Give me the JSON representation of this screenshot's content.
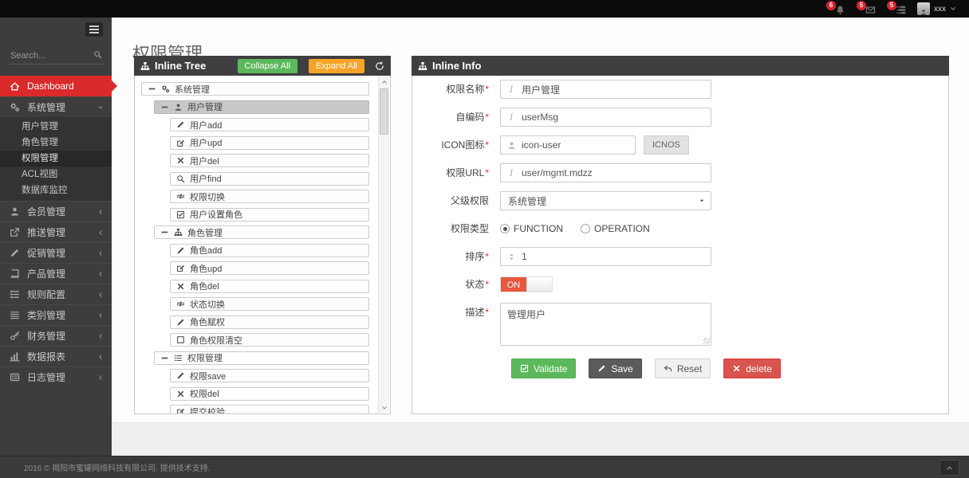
{
  "topbar": {
    "notifications": [
      {
        "icon": "bell",
        "count": "6"
      },
      {
        "icon": "envelope",
        "count": "5"
      },
      {
        "icon": "tasks",
        "count": "5"
      }
    ],
    "user": {
      "name": "xxx"
    }
  },
  "sidebar": {
    "search_placeholder": "Search...",
    "dashboard": {
      "label": "Dashboard"
    },
    "system_menu": {
      "label": "系统管理",
      "items": [
        {
          "name": "users",
          "label": "用户管理",
          "active": false
        },
        {
          "name": "roles",
          "label": "角色管理",
          "active": false
        },
        {
          "name": "permissions",
          "label": "权限管理",
          "active": true
        },
        {
          "name": "acl-view",
          "label": "ACL视图",
          "active": false
        },
        {
          "name": "db-monitor",
          "label": "数据库监控",
          "active": false
        }
      ]
    },
    "items": [
      {
        "name": "members",
        "label": "会员管理",
        "icon": "user"
      },
      {
        "name": "push",
        "label": "推送管理",
        "icon": "share"
      },
      {
        "name": "promotion",
        "label": "促销管理",
        "icon": "pencil"
      },
      {
        "name": "product",
        "label": "产品管理",
        "icon": "book"
      },
      {
        "name": "rules",
        "label": "规则配置",
        "icon": "thlist"
      },
      {
        "name": "category",
        "label": "类别管理",
        "icon": "justify"
      },
      {
        "name": "finance",
        "label": "财务管理",
        "icon": "key"
      },
      {
        "name": "reports",
        "label": "数据报表",
        "icon": "chart"
      },
      {
        "name": "logs",
        "label": "日志管理",
        "icon": "listalt"
      }
    ]
  },
  "page": {
    "title": "权限管理"
  },
  "tree_panel": {
    "title": "Inline Tree",
    "collapse_all": "Collapse All",
    "expand_all": "Expand All",
    "rows": [
      {
        "label": "系统管理",
        "level": 0,
        "type": "parent",
        "icon": "cogs",
        "selected": false
      },
      {
        "label": "用户管理",
        "level": 1,
        "type": "parent",
        "icon": "user",
        "selected": true
      },
      {
        "label": "用户add",
        "level": 2,
        "type": "leaf",
        "icon": "pencil",
        "selected": false
      },
      {
        "label": "用户upd",
        "level": 2,
        "type": "leaf",
        "icon": "edit",
        "selected": false
      },
      {
        "label": "用户del",
        "level": 2,
        "type": "leaf",
        "icon": "x",
        "selected": false
      },
      {
        "label": "用户find",
        "level": 2,
        "type": "leaf",
        "icon": "search",
        "selected": false
      },
      {
        "label": "权限切换",
        "level": 2,
        "type": "leaf",
        "icon": "retweet",
        "selected": false
      },
      {
        "label": "用户设置角色",
        "level": 2,
        "type": "leaf",
        "icon": "checksq",
        "selected": false
      },
      {
        "label": "角色管理",
        "level": 1,
        "type": "parent",
        "icon": "sitemap",
        "selected": false
      },
      {
        "label": "角色add",
        "level": 2,
        "type": "leaf",
        "icon": "pencil",
        "selected": false
      },
      {
        "label": "角色upd",
        "level": 2,
        "type": "leaf",
        "icon": "edit",
        "selected": false
      },
      {
        "label": "角色del",
        "level": 2,
        "type": "leaf",
        "icon": "x",
        "selected": false
      },
      {
        "label": "状态切换",
        "level": 2,
        "type": "leaf",
        "icon": "retweet",
        "selected": false
      },
      {
        "label": "角色赋权",
        "level": 2,
        "type": "leaf",
        "icon": "pencil",
        "selected": false
      },
      {
        "label": "角色权限清空",
        "level": 2,
        "type": "leaf",
        "icon": "square",
        "selected": false
      },
      {
        "label": "权限管理",
        "level": 1,
        "type": "parent",
        "icon": "list",
        "selected": false
      },
      {
        "label": "权限save",
        "level": 2,
        "type": "leaf",
        "icon": "pencil",
        "selected": false
      },
      {
        "label": "权限del",
        "level": 2,
        "type": "leaf",
        "icon": "x",
        "selected": false
      },
      {
        "label": "提交校验",
        "level": 2,
        "type": "leaf",
        "icon": "edit",
        "selected": false
      }
    ]
  },
  "info_panel": {
    "title": "Inline Info",
    "fields": [
      {
        "name": "permission-name-field",
        "label": "权限名称",
        "required": true,
        "type": "text",
        "icon": "italic",
        "value": "用户管理"
      },
      {
        "name": "code-field",
        "label": "自编码",
        "required": true,
        "type": "text",
        "icon": "italic",
        "value": "userMsg"
      },
      {
        "name": "icon-field",
        "label": "ICON图标",
        "required": true,
        "type": "text-button",
        "icon": "user",
        "value": "icon-user",
        "button": "ICNOS"
      },
      {
        "name": "url-field",
        "label": "权限URL",
        "required": true,
        "type": "text",
        "icon": "italic",
        "value": "user/mgmt.mdzz"
      },
      {
        "name": "parent-permission-select",
        "label": "父级权限",
        "required": false,
        "type": "select",
        "value": "系统管理"
      },
      {
        "name": "permission-type-radios",
        "label": "权限类型",
        "required": false,
        "type": "radio",
        "options": [
          {
            "label": "FUNCTION",
            "checked": true
          },
          {
            "label": "OPERATION",
            "checked": false
          }
        ]
      },
      {
        "name": "sort-field",
        "label": "排序",
        "required": true,
        "type": "text",
        "icon": "sort",
        "value": "1"
      },
      {
        "name": "status-toggle",
        "label": "状态",
        "required": true,
        "type": "toggle",
        "value": "ON"
      },
      {
        "name": "description-textarea",
        "label": "描述",
        "required": true,
        "type": "textarea",
        "value": "管理用户"
      }
    ],
    "buttons": [
      {
        "name": "validate-button",
        "label": "Validate",
        "style": "green",
        "icon": "checksq"
      },
      {
        "name": "save-button",
        "label": "Save",
        "style": "dark",
        "icon": "pencil"
      },
      {
        "name": "reset-button",
        "label": "Reset",
        "style": "light",
        "icon": "reply"
      },
      {
        "name": "delete-button",
        "label": "delete",
        "style": "red",
        "icon": "x"
      }
    ]
  },
  "footer": {
    "copyright": "2016 © 揭阳市蜜罐网络科技有限公司. 提供技术支持."
  },
  "colors": {
    "accent_red": "#db2a2c",
    "badge_red": "#d9232e",
    "success_green": "#5cb85c",
    "warning_orange": "#f8a326",
    "danger_red": "#d9534f",
    "toggle_on_red": "#e9573f",
    "sidebar_bg": "#3d3d3d",
    "panel_header_bg": "#3f3f41"
  }
}
